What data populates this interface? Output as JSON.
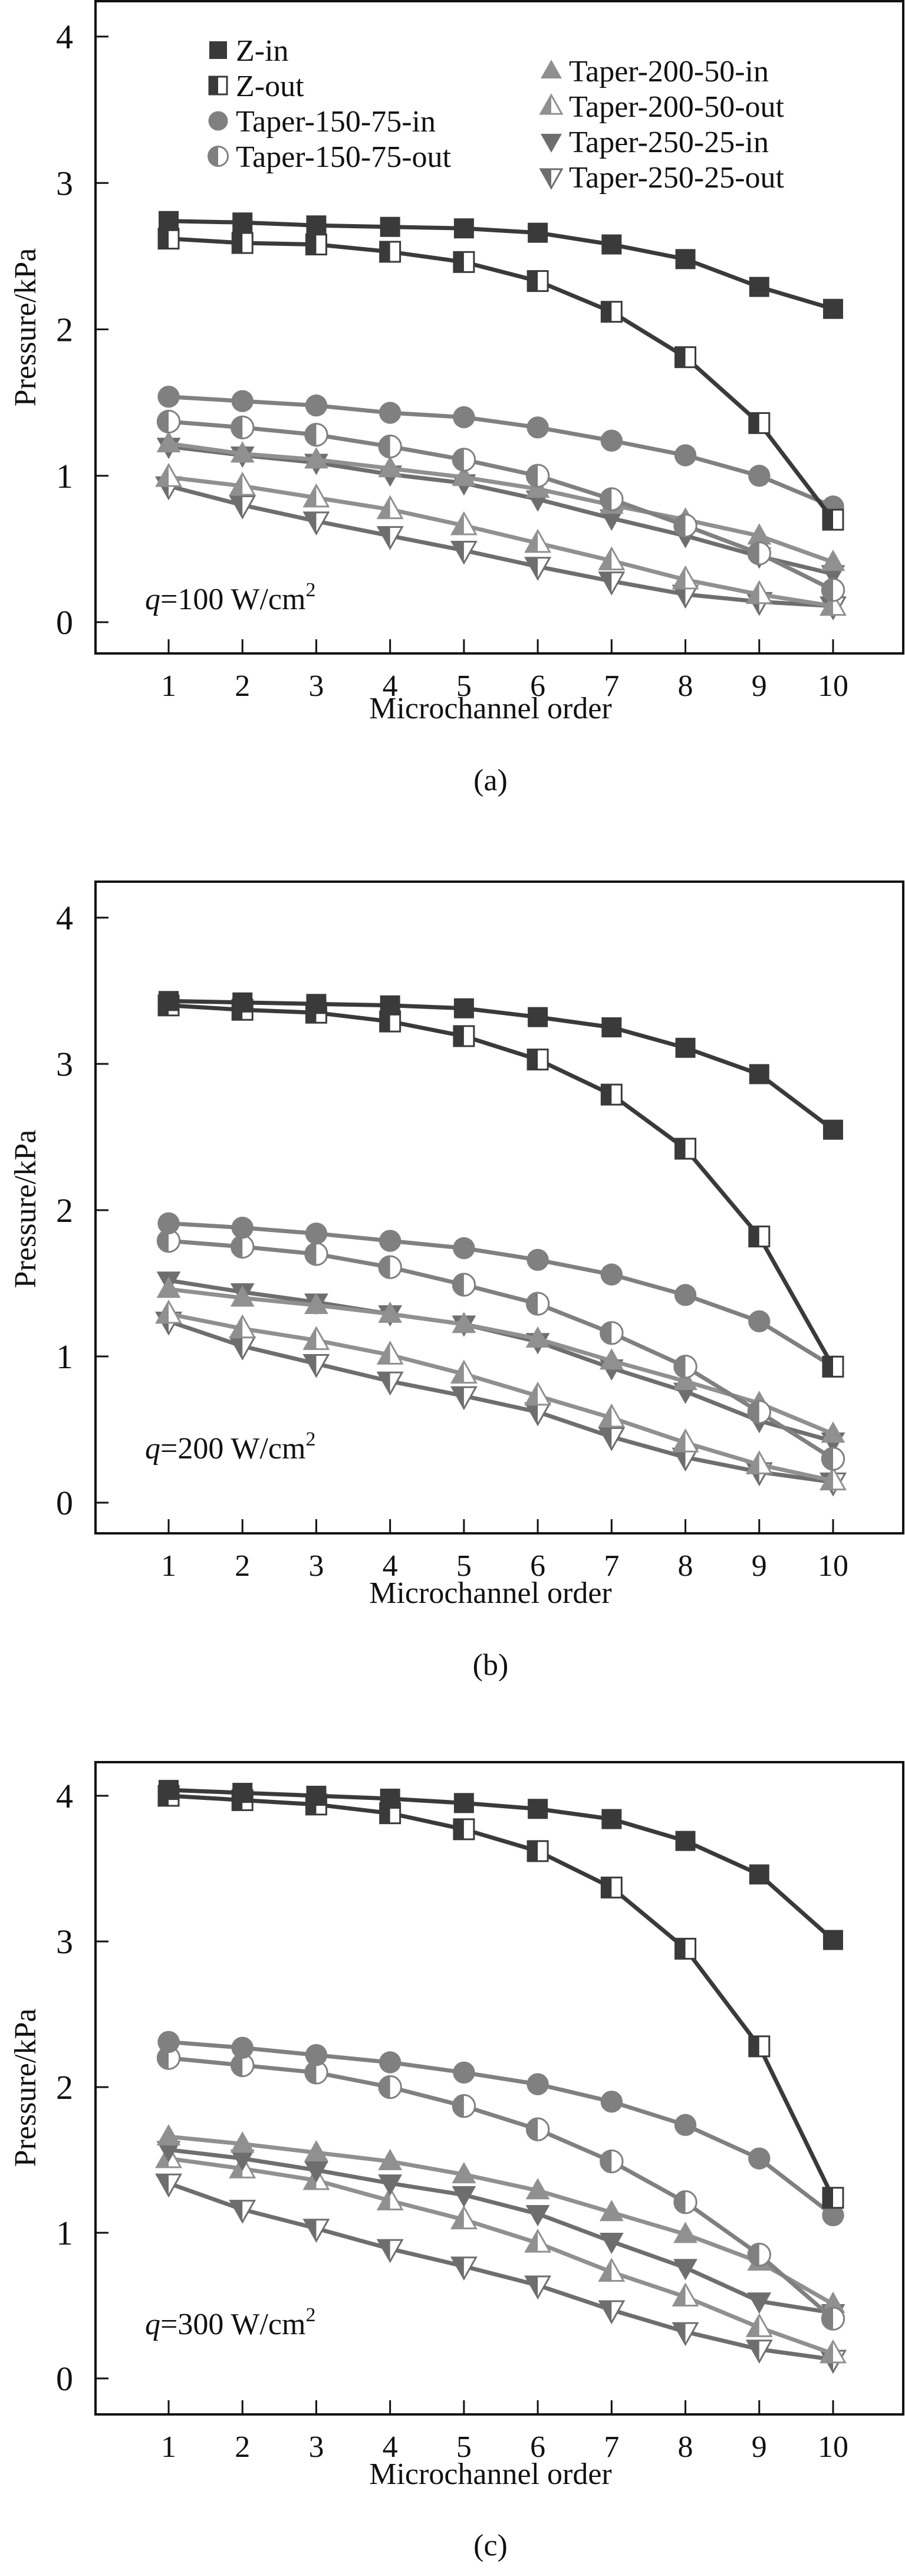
{
  "colors": {
    "z": "#3a3a3a",
    "taper_150": "#808080",
    "taper_200": "#909090",
    "taper_250": "#6e6e6e",
    "axis": "#111111",
    "hollow": "#ffffff"
  },
  "legend": [
    {
      "key": "z_in",
      "label": "Z-in",
      "marker": "square-filled"
    },
    {
      "key": "z_out",
      "label": "Z-out",
      "marker": "square-half"
    },
    {
      "key": "t150_in",
      "label": "Taper-150-75-in",
      "marker": "circle-filled"
    },
    {
      "key": "t150_out",
      "label": "Taper-150-75-out",
      "marker": "circle-half"
    },
    {
      "key": "t200_in",
      "label": "Taper-200-50-in",
      "marker": "triangle-up-filled"
    },
    {
      "key": "t200_out",
      "label": "Taper-200-50-out",
      "marker": "triangle-up-half"
    },
    {
      "key": "t250_in",
      "label": "Taper-250-25-in",
      "marker": "triangle-down-filled"
    },
    {
      "key": "t250_out",
      "label": "Taper-250-25-out",
      "marker": "triangle-down-half"
    }
  ],
  "chart_data": [
    {
      "type": "line",
      "panel_label": "(a)",
      "annotation": {
        "q_symbol": "q",
        "text": "=100 W/cm",
        "sup": "2"
      },
      "xlabel": "Microchannel order",
      "ylabel": "Pressure/kPa",
      "x": [
        1,
        2,
        3,
        4,
        5,
        6,
        7,
        8,
        9,
        10
      ],
      "xticks": [
        "1",
        "2",
        "3",
        "4",
        "5",
        "6",
        "7",
        "8",
        "9",
        "10"
      ],
      "yticks": [
        "0",
        "1",
        "2",
        "3",
        "4"
      ],
      "ylim": [
        -0.2,
        4.25
      ],
      "xlim": [
        0,
        11
      ],
      "legend_position": "top",
      "grid": false,
      "series": [
        {
          "key": "z_in",
          "name": "Z-in",
          "values": [
            2.74,
            2.73,
            2.71,
            2.7,
            2.69,
            2.66,
            2.58,
            2.48,
            2.29,
            2.14
          ]
        },
        {
          "key": "z_out",
          "name": "Z-out",
          "values": [
            2.62,
            2.59,
            2.58,
            2.53,
            2.46,
            2.33,
            2.12,
            1.81,
            1.36,
            0.7
          ]
        },
        {
          "key": "t150_in",
          "name": "Taper-150-75-in",
          "values": [
            1.54,
            1.51,
            1.48,
            1.43,
            1.4,
            1.33,
            1.24,
            1.14,
            1.0,
            0.79
          ]
        },
        {
          "key": "t150_out",
          "name": "Taper-150-75-out",
          "values": [
            1.37,
            1.33,
            1.28,
            1.2,
            1.11,
            1.0,
            0.84,
            0.66,
            0.47,
            0.22
          ]
        },
        {
          "key": "t200_in",
          "name": "Taper-200-50-in",
          "values": [
            1.22,
            1.15,
            1.11,
            1.05,
            0.99,
            0.91,
            0.8,
            0.7,
            0.59,
            0.41
          ]
        },
        {
          "key": "t200_out",
          "name": "Taper-200-50-out",
          "values": [
            0.99,
            0.93,
            0.85,
            0.77,
            0.66,
            0.54,
            0.42,
            0.29,
            0.19,
            0.11
          ]
        },
        {
          "key": "t250_in",
          "name": "Taper-250-25-in",
          "values": [
            1.2,
            1.14,
            1.09,
            1.01,
            0.95,
            0.84,
            0.71,
            0.59,
            0.45,
            0.33
          ]
        },
        {
          "key": "t250_out",
          "name": "Taper-250-25-out",
          "values": [
            0.93,
            0.8,
            0.69,
            0.59,
            0.49,
            0.38,
            0.28,
            0.19,
            0.14,
            0.11
          ]
        }
      ]
    },
    {
      "type": "line",
      "panel_label": "(b)",
      "annotation": {
        "q_symbol": "q",
        "text": "=200 W/cm",
        "sup": "2"
      },
      "xlabel": "Microchannel order",
      "ylabel": "Pressure/kPa",
      "x": [
        1,
        2,
        3,
        4,
        5,
        6,
        7,
        8,
        9,
        10
      ],
      "xticks": [
        "1",
        "2",
        "3",
        "4",
        "5",
        "6",
        "7",
        "8",
        "9",
        "10"
      ],
      "yticks": [
        "0",
        "1",
        "2",
        "3",
        "4"
      ],
      "ylim": [
        -0.2,
        4.25
      ],
      "xlim": [
        0,
        11
      ],
      "grid": false,
      "series": [
        {
          "key": "z_in",
          "name": "Z-in",
          "values": [
            3.43,
            3.42,
            3.41,
            3.4,
            3.38,
            3.32,
            3.25,
            3.11,
            2.93,
            2.55
          ]
        },
        {
          "key": "z_out",
          "name": "Z-out",
          "values": [
            3.4,
            3.37,
            3.35,
            3.29,
            3.19,
            3.03,
            2.79,
            2.42,
            1.82,
            0.93
          ]
        },
        {
          "key": "t150_in",
          "name": "Taper-150-75-in",
          "values": [
            1.91,
            1.88,
            1.84,
            1.79,
            1.74,
            1.66,
            1.56,
            1.42,
            1.24,
            0.93
          ]
        },
        {
          "key": "t150_out",
          "name": "Taper-150-75-out",
          "values": [
            1.79,
            1.75,
            1.7,
            1.61,
            1.49,
            1.36,
            1.16,
            0.93,
            0.62,
            0.3
          ]
        },
        {
          "key": "t200_in",
          "name": "Taper-200-50-in",
          "values": [
            1.46,
            1.4,
            1.35,
            1.29,
            1.22,
            1.12,
            0.97,
            0.83,
            0.68,
            0.47
          ]
        },
        {
          "key": "t200_out",
          "name": "Taper-200-50-out",
          "values": [
            1.29,
            1.19,
            1.11,
            1.01,
            0.88,
            0.73,
            0.58,
            0.41,
            0.26,
            0.15
          ]
        },
        {
          "key": "t250_in",
          "name": "Taper-250-25-in",
          "values": [
            1.52,
            1.44,
            1.37,
            1.29,
            1.22,
            1.1,
            0.92,
            0.76,
            0.56,
            0.42
          ]
        },
        {
          "key": "t250_out",
          "name": "Taper-250-25-out",
          "values": [
            1.24,
            1.07,
            0.95,
            0.83,
            0.73,
            0.62,
            0.45,
            0.31,
            0.21,
            0.14
          ]
        }
      ]
    },
    {
      "type": "line",
      "panel_label": "(c)",
      "annotation": {
        "q_symbol": "q",
        "text": "=300 W/cm",
        "sup": "2"
      },
      "xlabel": "Microchannel order",
      "ylabel": "Pressure/kPa",
      "x": [
        1,
        2,
        3,
        4,
        5,
        6,
        7,
        8,
        9,
        10
      ],
      "xticks": [
        "1",
        "2",
        "3",
        "4",
        "5",
        "6",
        "7",
        "8",
        "9",
        "10"
      ],
      "yticks": [
        "0",
        "1",
        "2",
        "3",
        "4"
      ],
      "ylim": [
        -0.25,
        4.23
      ],
      "xlim": [
        0,
        11
      ],
      "grid": false,
      "series": [
        {
          "key": "z_in",
          "name": "Z-in",
          "values": [
            4.04,
            4.02,
            4.0,
            3.98,
            3.95,
            3.91,
            3.84,
            3.69,
            3.46,
            3.01
          ]
        },
        {
          "key": "z_out",
          "name": "Z-out",
          "values": [
            4.0,
            3.97,
            3.94,
            3.88,
            3.77,
            3.62,
            3.37,
            2.95,
            2.28,
            1.24
          ]
        },
        {
          "key": "t150_in",
          "name": "Taper-150-75-in",
          "values": [
            2.31,
            2.27,
            2.22,
            2.17,
            2.1,
            2.02,
            1.9,
            1.74,
            1.51,
            1.12
          ]
        },
        {
          "key": "t150_out",
          "name": "Taper-150-75-out",
          "values": [
            2.2,
            2.15,
            2.1,
            2.0,
            1.87,
            1.71,
            1.49,
            1.21,
            0.85,
            0.41
          ]
        },
        {
          "key": "t200_in",
          "name": "Taper-200-50-in",
          "values": [
            1.66,
            1.61,
            1.55,
            1.49,
            1.4,
            1.29,
            1.14,
            0.99,
            0.8,
            0.51
          ]
        },
        {
          "key": "t200_out",
          "name": "Taper-200-50-out",
          "values": [
            1.51,
            1.44,
            1.36,
            1.22,
            1.09,
            0.93,
            0.73,
            0.56,
            0.35,
            0.17
          ]
        },
        {
          "key": "t250_in",
          "name": "Taper-250-25-in",
          "values": [
            1.57,
            1.51,
            1.43,
            1.34,
            1.26,
            1.13,
            0.94,
            0.76,
            0.53,
            0.45
          ]
        },
        {
          "key": "t250_out",
          "name": "Taper-250-25-out",
          "values": [
            1.34,
            1.16,
            1.03,
            0.89,
            0.77,
            0.64,
            0.47,
            0.32,
            0.2,
            0.13
          ]
        }
      ]
    }
  ]
}
